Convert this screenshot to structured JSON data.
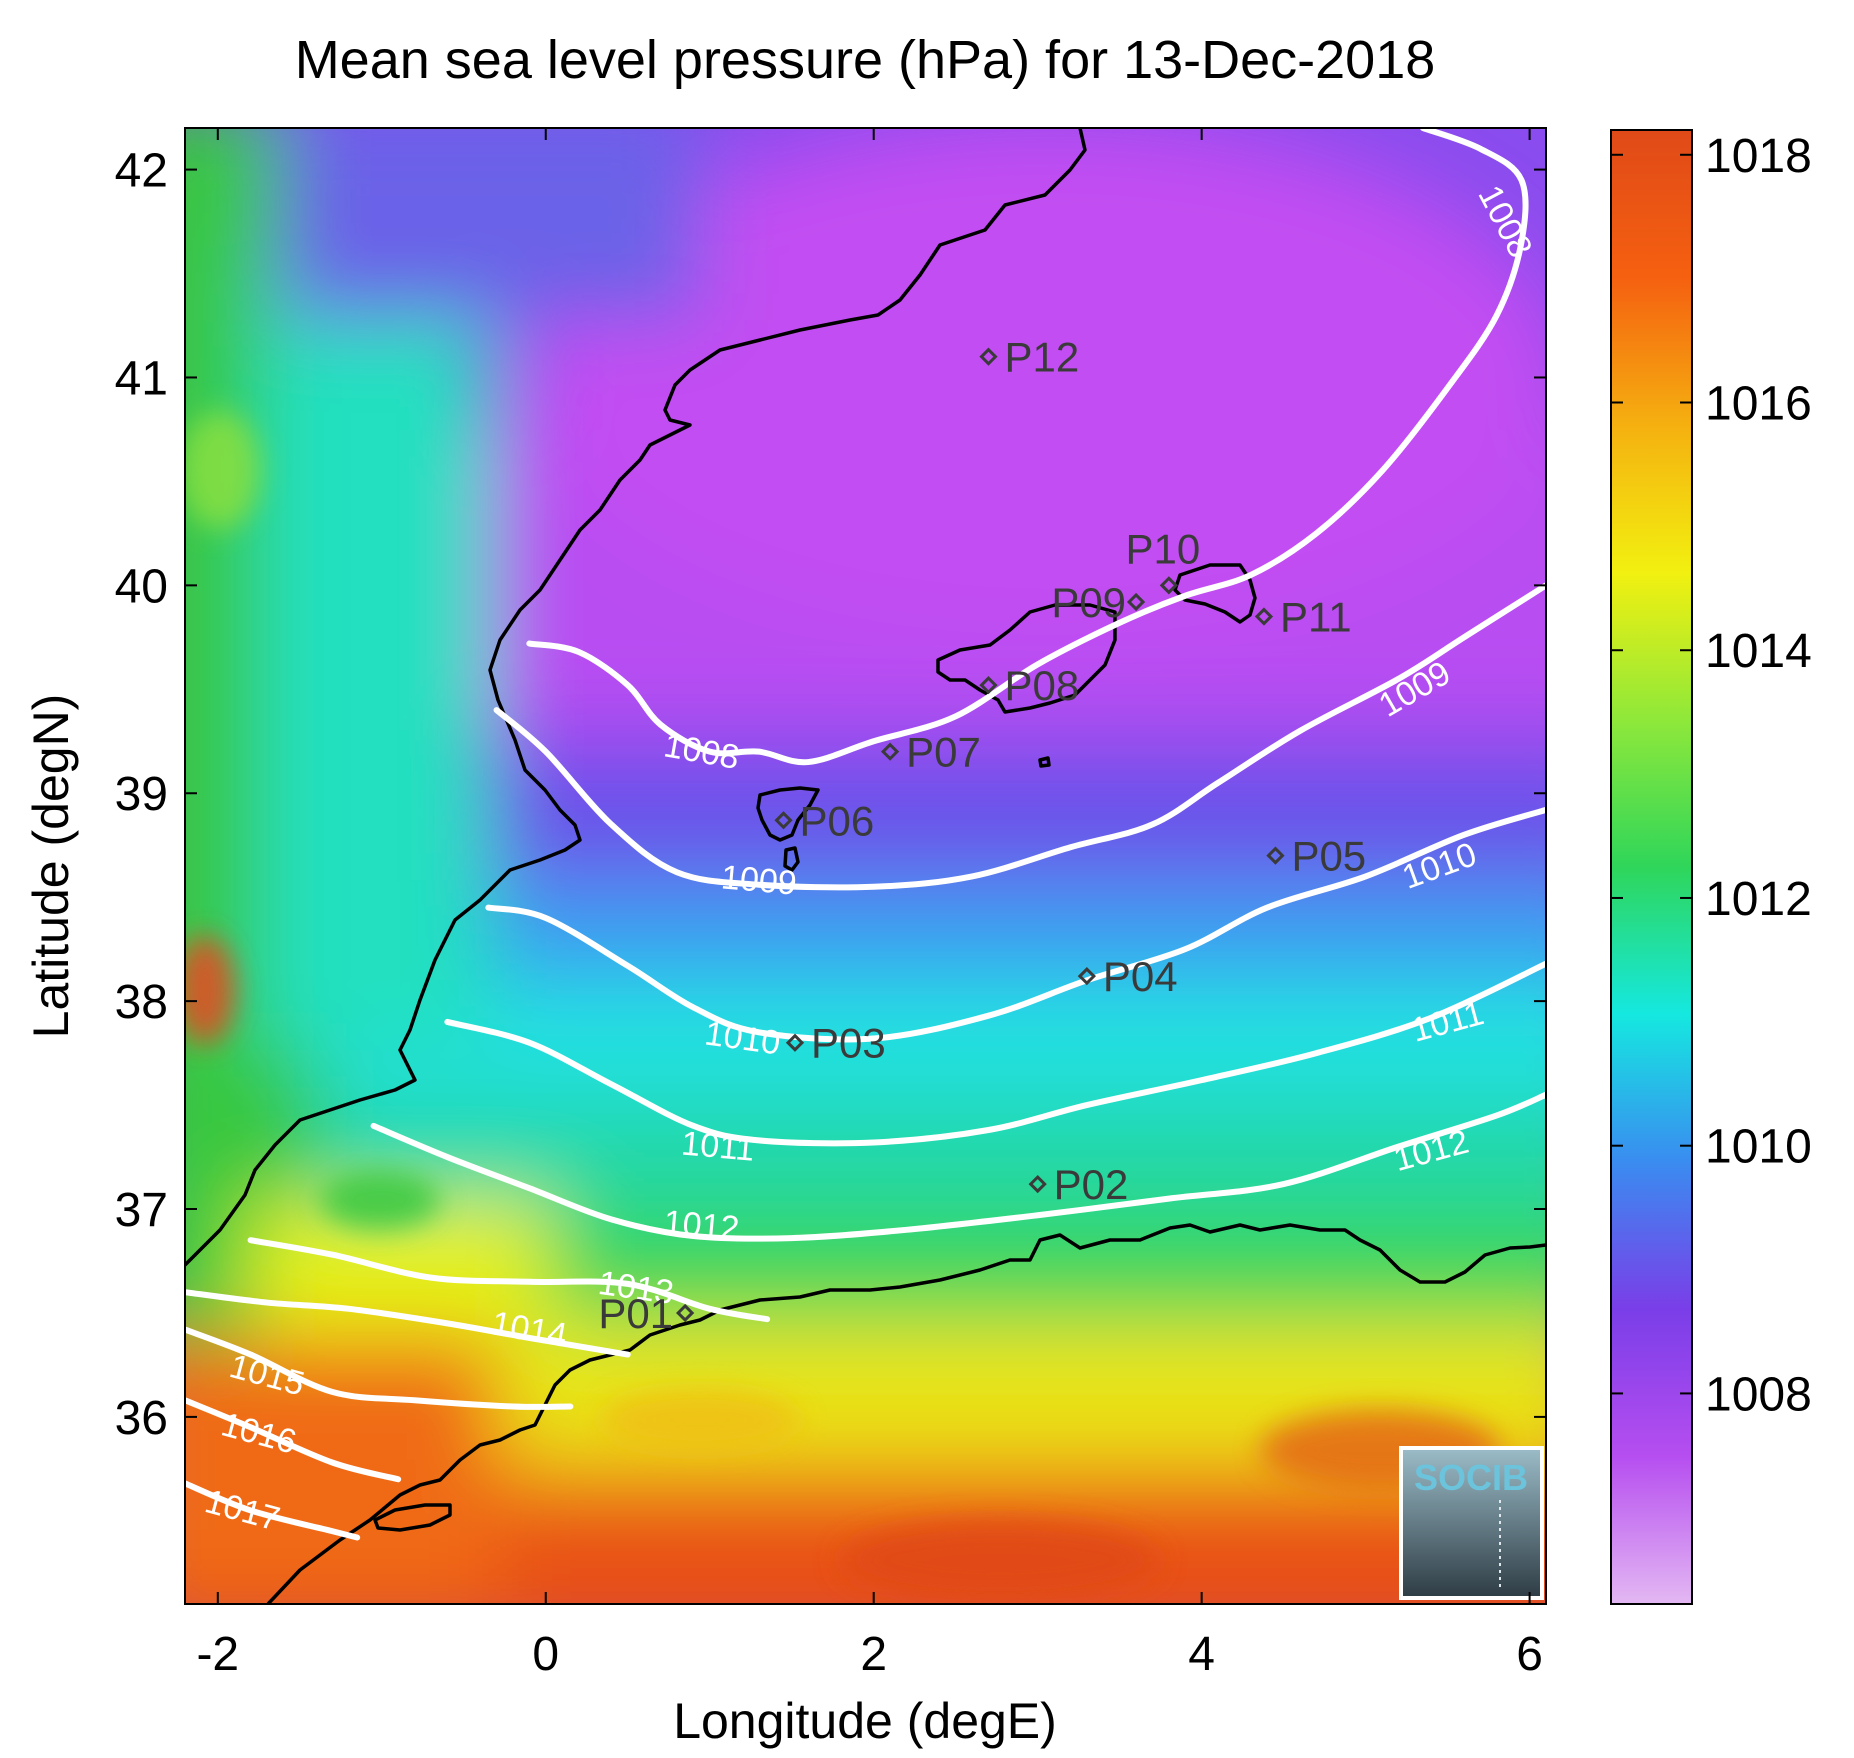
{
  "title": "Mean sea level pressure (hPa) for 13-Dec-2018",
  "xlabel": "Longitude (degE)",
  "ylabel": "Latitude (degN)",
  "xlim": [
    -2.2,
    6.1
  ],
  "ylim": [
    35.1,
    42.2
  ],
  "xticks": [
    {
      "value": -2,
      "label": "-2"
    },
    {
      "value": 0,
      "label": "0"
    },
    {
      "value": 2,
      "label": "2"
    },
    {
      "value": 4,
      "label": "4"
    },
    {
      "value": 6,
      "label": "6"
    }
  ],
  "yticks": [
    {
      "value": 36,
      "label": "36"
    },
    {
      "value": 37,
      "label": "37"
    },
    {
      "value": 38,
      "label": "38"
    },
    {
      "value": 39,
      "label": "39"
    },
    {
      "value": 40,
      "label": "40"
    },
    {
      "value": 41,
      "label": "41"
    },
    {
      "value": 42,
      "label": "42"
    }
  ],
  "colorbar": {
    "min": 1006.3,
    "max": 1018.2,
    "ticks": [
      {
        "value": 1008,
        "label": "1008"
      },
      {
        "value": 1010,
        "label": "1010"
      },
      {
        "value": 1012,
        "label": "1012"
      },
      {
        "value": 1014,
        "label": "1014"
      },
      {
        "value": 1016,
        "label": "1016"
      },
      {
        "value": 1018,
        "label": "1018"
      }
    ],
    "colors": [
      "#e3b8f2",
      "#b64ef0",
      "#7a3ee8",
      "#3a8cf0",
      "#15e8e0",
      "#2fd65a",
      "#8fe83a",
      "#f2f010",
      "#f5b010",
      "#f56010",
      "#e04a18"
    ]
  },
  "contour_levels": [
    1008,
    1009,
    1010,
    1011,
    1012,
    1013,
    1014,
    1015,
    1016,
    1017
  ],
  "contours": [
    {
      "level": 1008,
      "label": "1008",
      "path": [
        [
          -0.1,
          39.72
        ],
        [
          0.2,
          39.68
        ],
        [
          0.5,
          39.52
        ],
        [
          0.7,
          39.33
        ],
        [
          1.0,
          39.2
        ],
        [
          1.3,
          39.2
        ],
        [
          1.6,
          39.15
        ],
        [
          2.0,
          39.25
        ],
        [
          2.5,
          39.37
        ],
        [
          3.0,
          39.62
        ],
        [
          3.5,
          39.82
        ],
        [
          3.9,
          39.95
        ],
        [
          4.3,
          40.05
        ],
        [
          4.7,
          40.25
        ],
        [
          5.1,
          40.55
        ],
        [
          5.5,
          40.95
        ],
        [
          5.8,
          41.3
        ],
        [
          5.95,
          41.65
        ],
        [
          5.95,
          41.95
        ],
        [
          5.7,
          42.1
        ],
        [
          5.35,
          42.2
        ]
      ],
      "label_at": [
        0.95,
        39.2
      ],
      "label_angle": 10
    }
  ],
  "contour_labels": [
    {
      "level": 1008,
      "label": "1008",
      "at": [
        5.85,
        41.75
      ],
      "angle": 62
    },
    {
      "level": 1009,
      "label": "1009",
      "at": [
        1.3,
        38.58
      ],
      "angle": 5
    },
    {
      "level": 1009,
      "label": "1009",
      "at": [
        5.3,
        39.5
      ],
      "angle": -30
    },
    {
      "level": 1010,
      "label": "1010",
      "at": [
        1.2,
        37.82
      ],
      "angle": 8
    },
    {
      "level": 1010,
      "label": "1010",
      "at": [
        5.45,
        38.65
      ],
      "angle": -20
    },
    {
      "level": 1011,
      "label": "1011",
      "at": [
        1.05,
        37.3
      ],
      "angle": 5
    },
    {
      "level": 1011,
      "label": "1011",
      "at": [
        5.5,
        37.9
      ],
      "angle": -15
    },
    {
      "level": 1012,
      "label": "1012",
      "at": [
        0.95,
        36.92
      ],
      "angle": 5
    },
    {
      "level": 1012,
      "label": "1012",
      "at": [
        5.4,
        37.28
      ],
      "angle": -15
    },
    {
      "level": 1013,
      "label": "1013",
      "at": [
        0.55,
        36.62
      ],
      "angle": 8
    },
    {
      "level": 1014,
      "label": "1014",
      "at": [
        -0.1,
        36.42
      ],
      "angle": 10
    },
    {
      "level": 1015,
      "label": "1015",
      "at": [
        -1.7,
        36.2
      ],
      "angle": 15
    },
    {
      "level": 1016,
      "label": "1016",
      "at": [
        -1.75,
        35.92
      ],
      "angle": 15
    },
    {
      "level": 1017,
      "label": "1017",
      "at": [
        -1.85,
        35.55
      ],
      "angle": 15
    }
  ],
  "isobars": [
    {
      "level": 1009,
      "path": [
        [
          -0.3,
          39.4
        ],
        [
          0.0,
          39.2
        ],
        [
          0.4,
          38.85
        ],
        [
          0.8,
          38.62
        ],
        [
          1.3,
          38.56
        ],
        [
          2.0,
          38.55
        ],
        [
          2.6,
          38.6
        ],
        [
          3.2,
          38.74
        ],
        [
          3.7,
          38.85
        ],
        [
          4.1,
          39.05
        ],
        [
          4.6,
          39.3
        ],
        [
          5.2,
          39.55
        ],
        [
          5.6,
          39.75
        ],
        [
          6.1,
          40.0
        ]
      ]
    },
    {
      "level": 1010,
      "path": [
        [
          -0.35,
          38.45
        ],
        [
          0.0,
          38.4
        ],
        [
          0.5,
          38.17
        ],
        [
          0.9,
          37.97
        ],
        [
          1.3,
          37.85
        ],
        [
          2.0,
          37.82
        ],
        [
          2.7,
          37.93
        ],
        [
          3.3,
          38.1
        ],
        [
          3.9,
          38.25
        ],
        [
          4.4,
          38.45
        ],
        [
          5.0,
          38.6
        ],
        [
          5.6,
          38.8
        ],
        [
          6.1,
          38.92
        ]
      ]
    },
    {
      "level": 1011,
      "path": [
        [
          -0.6,
          37.9
        ],
        [
          -0.1,
          37.8
        ],
        [
          0.4,
          37.6
        ],
        [
          0.9,
          37.4
        ],
        [
          1.3,
          37.33
        ],
        [
          2.0,
          37.32
        ],
        [
          2.7,
          37.38
        ],
        [
          3.3,
          37.5
        ],
        [
          4.0,
          37.62
        ],
        [
          4.7,
          37.75
        ],
        [
          5.4,
          37.92
        ],
        [
          6.1,
          38.18
        ]
      ]
    },
    {
      "level": 1012,
      "path": [
        [
          -1.05,
          37.4
        ],
        [
          -0.6,
          37.25
        ],
        [
          -0.1,
          37.1
        ],
        [
          0.4,
          36.95
        ],
        [
          0.9,
          36.87
        ],
        [
          1.5,
          36.86
        ],
        [
          2.2,
          36.9
        ],
        [
          3.0,
          36.97
        ],
        [
          3.8,
          37.05
        ],
        [
          4.5,
          37.12
        ],
        [
          5.2,
          37.3
        ],
        [
          5.8,
          37.45
        ],
        [
          6.1,
          37.55
        ]
      ]
    },
    {
      "level": 1013,
      "path": [
        [
          -1.8,
          36.85
        ],
        [
          -1.3,
          36.78
        ],
        [
          -0.7,
          36.67
        ],
        [
          -0.1,
          36.65
        ],
        [
          0.5,
          36.64
        ],
        [
          1.0,
          36.52
        ],
        [
          1.35,
          36.47
        ]
      ]
    },
    {
      "level": 1014,
      "path": [
        [
          -2.2,
          36.6
        ],
        [
          -1.7,
          36.55
        ],
        [
          -1.2,
          36.52
        ],
        [
          -0.6,
          36.45
        ],
        [
          -0.1,
          36.38
        ],
        [
          0.5,
          36.3
        ]
      ]
    },
    {
      "level": 1015,
      "path": [
        [
          -2.2,
          36.42
        ],
        [
          -1.8,
          36.3
        ],
        [
          -1.3,
          36.12
        ],
        [
          -0.8,
          36.08
        ],
        [
          -0.2,
          36.05
        ],
        [
          0.15,
          36.05
        ]
      ]
    },
    {
      "level": 1016,
      "path": [
        [
          -2.2,
          36.08
        ],
        [
          -1.8,
          35.95
        ],
        [
          -1.3,
          35.78
        ],
        [
          -0.9,
          35.7
        ]
      ]
    },
    {
      "level": 1017,
      "path": [
        [
          -2.2,
          35.68
        ],
        [
          -1.8,
          35.55
        ],
        [
          -1.3,
          35.45
        ],
        [
          -1.15,
          35.42
        ]
      ]
    }
  ],
  "stations": [
    {
      "name": "P01",
      "lon": 0.85,
      "lat": 36.5
    },
    {
      "name": "P02",
      "lon": 3.0,
      "lat": 37.12
    },
    {
      "name": "P03",
      "lon": 1.52,
      "lat": 37.8
    },
    {
      "name": "P04",
      "lon": 3.3,
      "lat": 38.12
    },
    {
      "name": "P05",
      "lon": 4.45,
      "lat": 38.7
    },
    {
      "name": "P06",
      "lon": 1.45,
      "lat": 38.87
    },
    {
      "name": "P07",
      "lon": 2.1,
      "lat": 39.2
    },
    {
      "name": "P08",
      "lon": 2.7,
      "lat": 39.52
    },
    {
      "name": "P09",
      "lon": 3.6,
      "lat": 39.92
    },
    {
      "name": "P10",
      "lon": 3.8,
      "lat": 40.0
    },
    {
      "name": "P11",
      "lon": 4.38,
      "lat": 39.85
    },
    {
      "name": "P12",
      "lon": 2.7,
      "lat": 41.1
    }
  ],
  "logo": {
    "text": "SOCIB",
    "color": "#6cc3dc"
  }
}
